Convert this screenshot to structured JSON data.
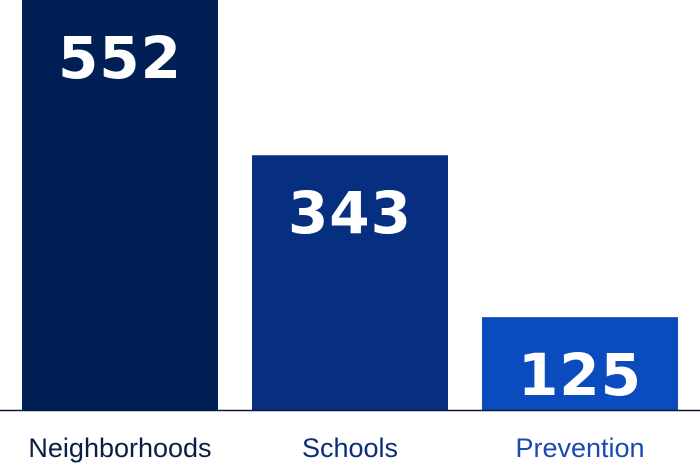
{
  "chart_data": {
    "type": "bar",
    "title": "",
    "xlabel": "",
    "ylabel": "",
    "categories": [
      "Neighborhoods",
      "Schools",
      "Prevention"
    ],
    "values": [
      552,
      343,
      125
    ],
    "ylim": [
      0,
      552
    ],
    "grid": false,
    "legend": "none",
    "data_labels": [
      "552",
      "343",
      "125"
    ],
    "bar_colors": [
      "#001f54",
      "#062f80",
      "#0a4bbd"
    ],
    "label_colors": [
      "#0a1e45",
      "#0a2e7a",
      "#1b49b5"
    ],
    "value_label_color": "#ffffff",
    "axis_color": "#0b1a3a"
  }
}
